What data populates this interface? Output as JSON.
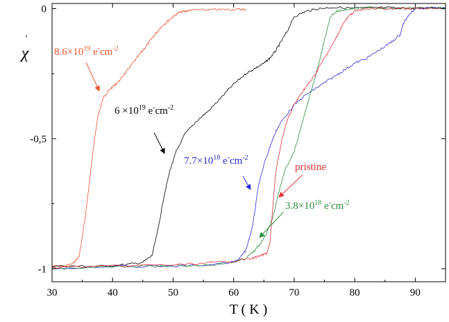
{
  "chart_data": {
    "type": "line",
    "xlabel": "T ( K )",
    "ylabel": "χ",
    "ylabel_mark": "'",
    "xlim": [
      30,
      95
    ],
    "ylim": [
      -1.05,
      0.02
    ],
    "x_ticks": [
      30,
      40,
      50,
      60,
      70,
      80,
      90
    ],
    "y_ticks": [
      {
        "value": 0,
        "label": "0"
      },
      {
        "value": -0.5,
        "label": "-0,5"
      },
      {
        "value": -1,
        "label": "-1"
      }
    ],
    "grid": false,
    "legend": "none",
    "series": [
      {
        "color": "#e8542c",
        "x": [
          30,
          32,
          33.5,
          34.5,
          35.5,
          36.5,
          37.5,
          38.5,
          39.2,
          40,
          41,
          42,
          43,
          44,
          45,
          46,
          47,
          48,
          49,
          50,
          51,
          52,
          53,
          55,
          57,
          59,
          61,
          62
        ],
        "y": [
          -0.99,
          -0.99,
          -0.98,
          -0.95,
          -0.8,
          -0.6,
          -0.42,
          -0.34,
          -0.32,
          -0.3,
          -0.28,
          -0.25,
          -0.22,
          -0.19,
          -0.16,
          -0.13,
          -0.1,
          -0.07,
          -0.05,
          -0.03,
          -0.015,
          -0.01,
          -0.005,
          -0.005,
          -0.004,
          -0.003,
          -0.003,
          -0.003
        ]
      },
      {
        "color": "#000000",
        "x": [
          30,
          34,
          38,
          42,
          45,
          46.5,
          47.5,
          48.5,
          49.5,
          50.5,
          52,
          54,
          56,
          58,
          60,
          62,
          63.5,
          65,
          66,
          67,
          68,
          69,
          70,
          72,
          74,
          76,
          80,
          84,
          88,
          92,
          95
        ],
        "y": [
          -0.99,
          -0.99,
          -0.99,
          -0.985,
          -0.975,
          -0.95,
          -0.85,
          -0.72,
          -0.62,
          -0.55,
          -0.48,
          -0.43,
          -0.39,
          -0.34,
          -0.29,
          -0.25,
          -0.23,
          -0.21,
          -0.19,
          -0.16,
          -0.12,
          -0.08,
          -0.03,
          -0.01,
          0,
          0.005,
          0.002,
          0.004,
          0.002,
          0.003,
          0.002
        ]
      },
      {
        "color": "#2a2acf",
        "x": [
          30,
          40,
          50,
          56,
          60,
          61,
          62,
          63,
          63.5,
          64,
          65,
          66,
          67,
          68,
          70,
          72,
          74,
          76,
          78,
          80,
          82,
          84,
          86,
          87.5,
          88,
          89,
          90,
          92,
          95
        ],
        "y": [
          -1.0,
          -0.99,
          -0.99,
          -0.985,
          -0.975,
          -0.96,
          -0.93,
          -0.85,
          -0.78,
          -0.69,
          -0.6,
          -0.53,
          -0.47,
          -0.43,
          -0.37,
          -0.33,
          -0.3,
          -0.27,
          -0.24,
          -0.21,
          -0.19,
          -0.16,
          -0.13,
          -0.1,
          -0.06,
          -0.02,
          0,
          0.002,
          0.002
        ]
      },
      {
        "color": "#2e8b3e",
        "x": [
          30,
          40,
          50,
          56,
          60,
          62,
          63.5,
          64.5,
          65.5,
          66.5,
          67.5,
          68.5,
          70,
          71,
          72,
          73,
          74,
          75,
          76,
          77,
          78,
          80,
          84,
          88,
          92,
          95
        ],
        "y": [
          -1.0,
          -0.99,
          -0.99,
          -0.985,
          -0.975,
          -0.96,
          -0.93,
          -0.9,
          -0.86,
          -0.8,
          -0.7,
          -0.62,
          -0.55,
          -0.47,
          -0.38,
          -0.3,
          -0.22,
          -0.12,
          -0.03,
          -0.01,
          -0.005,
          0,
          0.002,
          0.002,
          0.002,
          0.002
        ]
      },
      {
        "color": "#e0303a",
        "x": [
          30,
          40,
          50,
          55,
          60,
          63,
          64.5,
          65.5,
          66,
          66.5,
          67,
          68,
          69,
          70,
          71,
          72,
          73,
          74,
          75,
          76,
          77,
          78,
          79,
          80,
          82,
          86,
          90,
          95
        ],
        "y": [
          -0.995,
          -0.99,
          -0.985,
          -0.98,
          -0.97,
          -0.96,
          -0.95,
          -0.94,
          -0.9,
          -0.75,
          -0.62,
          -0.5,
          -0.42,
          -0.37,
          -0.33,
          -0.3,
          -0.27,
          -0.23,
          -0.19,
          -0.15,
          -0.11,
          -0.06,
          -0.03,
          -0.01,
          0,
          0,
          0,
          0
        ]
      }
    ],
    "annotations": [
      {
        "id": "ann-86e19",
        "base": "8.6",
        "times": "×",
        "exp_base": "10",
        "exp": "19",
        "unit": " e",
        "unit_sup": "-",
        "unit2": "cm",
        "unit2_sup": "-2",
        "color": "#e8542c"
      },
      {
        "id": "ann-6e19",
        "base": "6 ",
        "times": "×",
        "exp_base": "10",
        "exp": "19",
        "unit": " e",
        "unit_sup": "-",
        "unit2": "cm",
        "unit2_sup": "-2",
        "color": "#000000"
      },
      {
        "id": "ann-77e18",
        "base": "7.7",
        "times": "×",
        "exp_base": "10",
        "exp": "18",
        "unit": " e",
        "unit_sup": "-",
        "unit2": "cm",
        "unit2_sup": "-2",
        "color": "#2a2acf"
      },
      {
        "id": "ann-pristine",
        "text": "pristine",
        "color": "#e0303a"
      },
      {
        "id": "ann-38e18",
        "base": "3.8",
        "times": "×",
        "exp_base": "10",
        "exp": "18",
        "unit": " e",
        "unit_sup": "-",
        "unit2": "cm",
        "unit2_sup": "-2",
        "color": "#2e8b3e"
      }
    ]
  }
}
